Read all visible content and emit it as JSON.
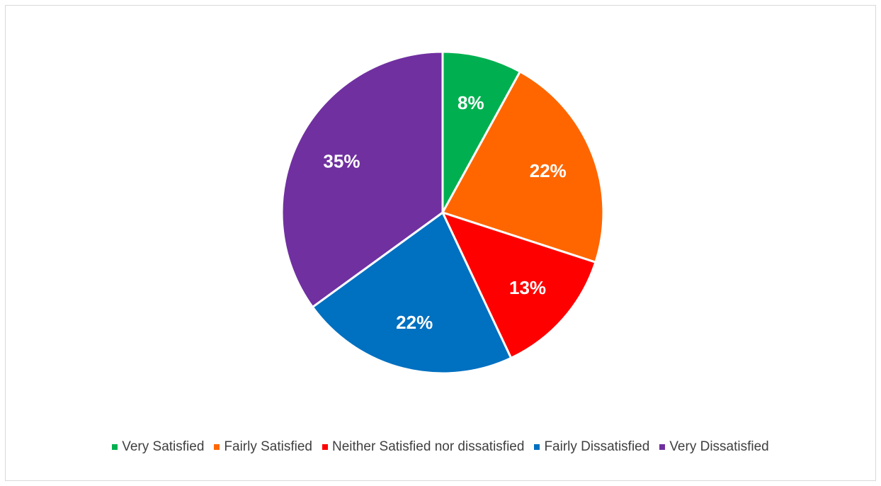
{
  "chart_data": {
    "type": "pie",
    "title": "",
    "categories": [
      "Very Satisfied",
      "Fairly Satisfied",
      "Neither Satisfied nor dissatisfied",
      "Fairly Dissatisfied",
      "Very Dissatisfied"
    ],
    "values": [
      8,
      22,
      13,
      22,
      35
    ],
    "labels": [
      "8%",
      "22%",
      "13%",
      "22%",
      "35%"
    ],
    "colors": [
      "#00B050",
      "#FF6600",
      "#FF0000",
      "#0070C0",
      "#7030A0"
    ],
    "legend_position": "bottom",
    "start_angle": "12 o'clock",
    "direction": "clockwise"
  },
  "legend": {
    "items": [
      {
        "label": "Very Satisfied",
        "color": "#00B050"
      },
      {
        "label": "Fairly Satisfied",
        "color": "#FF6600"
      },
      {
        "label": "Neither Satisfied nor dissatisfied",
        "color": "#FF0000"
      },
      {
        "label": "Fairly Dissatisfied",
        "color": "#0070C0"
      },
      {
        "label": "Very Dissatisfied",
        "color": "#7030A0"
      }
    ]
  }
}
